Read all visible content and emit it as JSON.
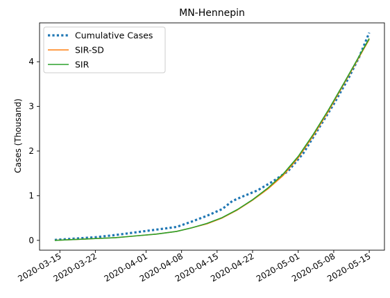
{
  "chart_data": {
    "type": "line",
    "title": "MN-Hennepin",
    "xlabel": "",
    "ylabel": "Cases (Thousand)",
    "x_start_date": "2020-03-14",
    "x_end_date": "2020-05-15",
    "xlim": [
      "2020-03-11",
      "2020-05-18"
    ],
    "ylim": [
      -0.22,
      4.87
    ],
    "x_tick_labels": [
      "2020-03-15",
      "2020-03-22",
      "2020-04-01",
      "2020-04-08",
      "2020-04-15",
      "2020-04-22",
      "2020-05-01",
      "2020-05-08",
      "2020-05-15"
    ],
    "y_ticks": [
      0,
      1,
      2,
      3,
      4
    ],
    "y_tick_labels": [
      "0",
      "1",
      "2",
      "3",
      "4"
    ],
    "grid": false,
    "legend_position": "top-left",
    "series": [
      {
        "name": "Cumulative Cases",
        "color": "#1f77b4",
        "style": "dotted",
        "x": [
          "2020-03-14",
          "2020-03-18",
          "2020-03-22",
          "2020-03-26",
          "2020-03-30",
          "2020-04-03",
          "2020-04-07",
          "2020-04-10",
          "2020-04-13",
          "2020-04-16",
          "2020-04-18",
          "2020-04-20",
          "2020-04-23",
          "2020-04-26",
          "2020-04-29",
          "2020-05-02",
          "2020-05-05",
          "2020-05-08",
          "2020-05-11",
          "2020-05-13",
          "2020-05-15"
        ],
        "values": [
          0.01,
          0.04,
          0.07,
          0.12,
          0.18,
          0.24,
          0.3,
          0.42,
          0.55,
          0.7,
          0.88,
          0.98,
          1.12,
          1.32,
          1.55,
          1.95,
          2.5,
          3.05,
          3.65,
          4.1,
          4.65
        ]
      },
      {
        "name": "SIR-SD",
        "color": "#ff7f0e",
        "style": "solid",
        "x": [
          "2020-03-14",
          "2020-03-18",
          "2020-03-22",
          "2020-03-26",
          "2020-03-30",
          "2020-04-03",
          "2020-04-07",
          "2020-04-10",
          "2020-04-13",
          "2020-04-16",
          "2020-04-19",
          "2020-04-22",
          "2020-04-25",
          "2020-04-28",
          "2020-05-01",
          "2020-05-04",
          "2020-05-07",
          "2020-05-10",
          "2020-05-13",
          "2020-05-15"
        ],
        "values": [
          0.0,
          0.02,
          0.04,
          0.06,
          0.1,
          0.14,
          0.2,
          0.28,
          0.37,
          0.5,
          0.68,
          0.9,
          1.15,
          1.45,
          1.85,
          2.35,
          2.9,
          3.5,
          4.1,
          4.5
        ]
      },
      {
        "name": "SIR",
        "color": "#2ca02c",
        "style": "solid",
        "x": [
          "2020-03-14",
          "2020-03-18",
          "2020-03-22",
          "2020-03-26",
          "2020-03-30",
          "2020-04-03",
          "2020-04-07",
          "2020-04-10",
          "2020-04-13",
          "2020-04-16",
          "2020-04-19",
          "2020-04-22",
          "2020-04-25",
          "2020-04-28",
          "2020-05-01",
          "2020-05-04",
          "2020-05-07",
          "2020-05-10",
          "2020-05-13",
          "2020-05-15"
        ],
        "values": [
          0.0,
          0.02,
          0.04,
          0.06,
          0.1,
          0.14,
          0.2,
          0.28,
          0.38,
          0.51,
          0.69,
          0.91,
          1.17,
          1.48,
          1.88,
          2.38,
          2.93,
          3.52,
          4.12,
          4.52
        ]
      }
    ]
  }
}
